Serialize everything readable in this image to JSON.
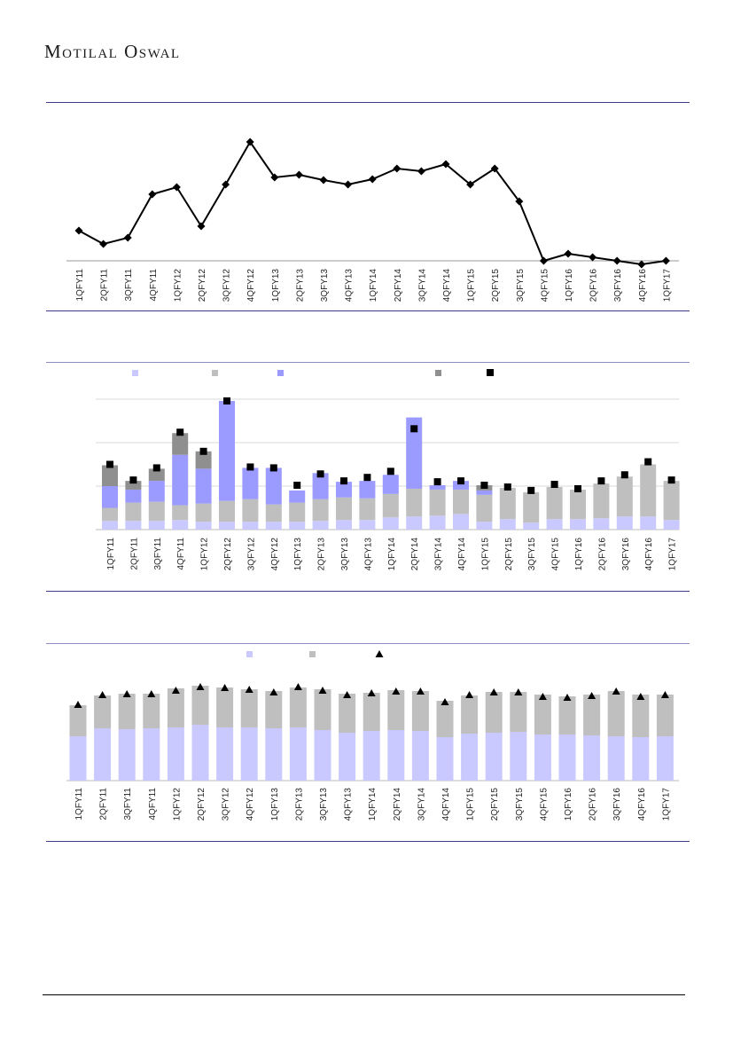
{
  "header": {
    "brand": "Motilal Oswal"
  },
  "colors": {
    "rule": "#3d3d8c",
    "lavender": "#c9c9ff",
    "gray": "#bfbfbf",
    "violet": "#9a9aff",
    "darkgray": "#8f8f8f",
    "black": "#000000"
  },
  "chart_data": [
    {
      "type": "line",
      "categories": [
        "1QFY11",
        "2QFY11",
        "3QFY11",
        "4QFY11",
        "1QFY12",
        "2QFY12",
        "3QFY12",
        "4QFY12",
        "1QFY13",
        "2QFY13",
        "3QFY13",
        "4QFY13",
        "1QFY14",
        "2QFY14",
        "3QFY14",
        "4QFY14",
        "1QFY15",
        "2QFY15",
        "3QFY15",
        "4QFY15",
        "1QFY16",
        "2QFY16",
        "3QFY16",
        "4QFY16",
        "1QFY17"
      ],
      "values": [
        34,
        19,
        26,
        75,
        83,
        39,
        86,
        134,
        94,
        97,
        91,
        86,
        92,
        104,
        101,
        109,
        86,
        104,
        67,
        0,
        8,
        4,
        0,
        -4,
        0
      ],
      "ylim": [
        -6,
        140
      ],
      "marker": "diamond",
      "grid": false
    },
    {
      "type": "bar",
      "stacked": true,
      "categories": [
        "1QFY11",
        "2QFY11",
        "3QFY11",
        "4QFY11",
        "1QFY12",
        "2QFY12",
        "3QFY12",
        "4QFY12",
        "1QFY13",
        "2QFY13",
        "3QFY13",
        "4QFY13",
        "1QFY14",
        "2QFY14",
        "3QFY14",
        "4QFY14",
        "1QFY15",
        "2QFY15",
        "3QFY15",
        "4QFY15",
        "1QFY16",
        "2QFY16",
        "3QFY16",
        "4QFY16",
        "1QFY17"
      ],
      "series": [
        {
          "color": "#c9c9ff",
          "values": [
            10,
            10,
            10,
            11,
            9,
            9,
            9,
            9,
            9,
            10,
            11,
            11,
            14,
            15,
            16,
            18,
            9,
            12,
            8,
            12,
            12,
            13,
            15,
            15,
            11
          ]
        },
        {
          "color": "#bfbfbf",
          "values": [
            15,
            21,
            22,
            17,
            21,
            24,
            26,
            20,
            22,
            25,
            26,
            25,
            27,
            32,
            30,
            28,
            31,
            36,
            35,
            37,
            34,
            40,
            46,
            60,
            45
          ]
        },
        {
          "color": "#9a9aff",
          "values": [
            25,
            15,
            24,
            58,
            40,
            115,
            36,
            42,
            14,
            30,
            18,
            20,
            22,
            82,
            5,
            10,
            5,
            0,
            0,
            0,
            0,
            0,
            0,
            0,
            0
          ]
        },
        {
          "color": "#8f8f8f",
          "values": [
            24,
            10,
            14,
            25,
            20,
            0,
            0,
            0,
            0,
            0,
            0,
            0,
            0,
            0,
            0,
            0,
            6,
            0,
            0,
            0,
            0,
            0,
            0,
            0,
            0
          ]
        }
      ],
      "markers": {
        "shape": "square",
        "values": [
          75,
          57,
          71,
          112,
          90,
          148,
          72,
          71,
          51,
          64,
          56,
          60,
          67,
          116,
          55,
          56,
          51,
          49,
          45,
          52,
          47,
          56,
          63,
          78,
          57
        ]
      },
      "ylim": [
        0,
        150
      ],
      "grid": true
    },
    {
      "type": "bar",
      "stacked": true,
      "categories": [
        "1QFY11",
        "2QFY11",
        "3QFY11",
        "4QFY11",
        "1QFY12",
        "2QFY12",
        "3QFY12",
        "4QFY12",
        "1QFY13",
        "2QFY13",
        "3QFY13",
        "4QFY13",
        "1QFY14",
        "2QFY14",
        "3QFY14",
        "4QFY14",
        "1QFY15",
        "2QFY15",
        "3QFY15",
        "4QFY15",
        "1QFY16",
        "2QFY16",
        "3QFY16",
        "4QFY16",
        "1QFY17"
      ],
      "series": [
        {
          "color": "#c9c9ff",
          "values": [
            50,
            59,
            58,
            59,
            60,
            63,
            60,
            60,
            59,
            60,
            57,
            54,
            56,
            57,
            56,
            49,
            53,
            54,
            55,
            52,
            52,
            51,
            50,
            49,
            50
          ]
        },
        {
          "color": "#bfbfbf",
          "values": [
            35,
            37,
            40,
            39,
            44,
            44,
            45,
            43,
            42,
            45,
            46,
            44,
            43,
            45,
            45,
            41,
            43,
            46,
            45,
            45,
            43,
            46,
            51,
            48,
            47
          ]
        }
      ],
      "markers": {
        "shape": "triangle",
        "values": [
          85,
          96,
          97,
          97,
          101,
          105,
          104,
          102,
          99,
          105,
          101,
          96,
          98,
          100,
          100,
          88,
          96,
          99,
          99,
          94,
          93,
          95,
          100,
          94,
          96
        ]
      },
      "ylim": [
        0,
        120
      ],
      "grid": false
    }
  ]
}
